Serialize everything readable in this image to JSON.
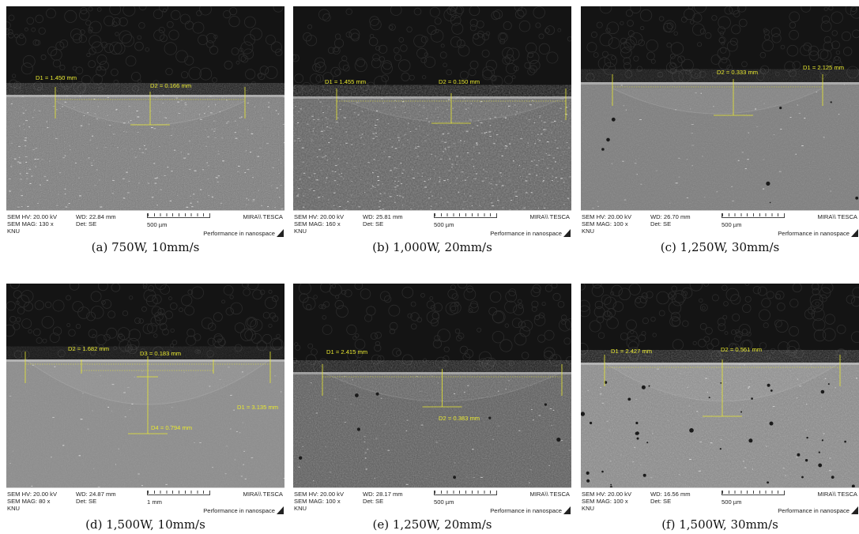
{
  "panels": [
    {
      "caption": "(a) 750W, 10mm/s",
      "hv": "SEM HV: 20.00 kV",
      "mag": "SEM MAG: 130 x",
      "wd": "WD: 22.84 mm",
      "det": "Det: SE",
      "scale": "500 µm",
      "lab": "KNU",
      "brand": "MIRA\\\\ TESCA",
      "perf": "Performance in nanospace",
      "ann": [
        {
          "t": "D1 = 1.450 mm"
        },
        {
          "t": "D2 = 0.166 mm"
        }
      ]
    },
    {
      "caption": "(b) 1,000W, 20mm/s",
      "hv": "SEM HV: 20.00 kV",
      "mag": "SEM MAG: 160 x",
      "wd": "WD: 25.81 mm",
      "det": "Det: SE",
      "scale": "500 µm",
      "lab": "KNU",
      "brand": "MIRA\\\\ TESCA",
      "perf": "Performance in nanospace",
      "ann": [
        {
          "t": "D1 = 1.455 mm"
        },
        {
          "t": "D2 = 0.150 mm"
        }
      ]
    },
    {
      "caption": "(c) 1,250W, 30mm/s",
      "hv": "SEM HV: 20.00 kV",
      "mag": "SEM MAG: 100 x",
      "wd": "WD: 26.70 mm",
      "det": "Det: SE",
      "scale": "500 µm",
      "lab": "KNU",
      "brand": "MIRA\\\\ TESCA",
      "perf": "Performance in nanospace",
      "ann": [
        {
          "t": "D2 = 0.333 mm"
        },
        {
          "t": "D1 = 2.125 mm"
        }
      ]
    },
    {
      "caption": "(d) 1,500W, 10mm/s",
      "hv": "SEM HV: 20.00 kV",
      "mag": "SEM MAG: 80 x",
      "wd": "WD: 24.87 mm",
      "det": "Det: SE",
      "scale": "1 mm",
      "lab": "KNU",
      "brand": "MIRA\\\\ TESCA",
      "perf": "Performance in nanospace",
      "ann": [
        {
          "t": "D2 = 1.682 mm"
        },
        {
          "t": "D3 = 0.183 mm"
        },
        {
          "t": "D1 = 3.135 mm"
        },
        {
          "t": "D4 = 0.794 mm"
        }
      ]
    },
    {
      "caption": "(e) 1,250W, 20mm/s",
      "hv": "SEM HV: 20.00 kV",
      "mag": "SEM MAG: 100 x",
      "wd": "WD: 28.17 mm",
      "det": "Det: SE",
      "scale": "500 µm",
      "lab": "KNU",
      "brand": "MIRA\\\\ TESCA",
      "perf": "Performance in nanospace",
      "ann": [
        {
          "t": "D1 = 2.415 mm"
        },
        {
          "t": "D2 = 0.383 mm"
        }
      ]
    },
    {
      "caption": "(f) 1,500W, 30mm/s",
      "hv": "SEM HV: 20.00 kV",
      "mag": "SEM MAG: 100 x",
      "wd": "WD: 16.56 mm",
      "det": "Det: SE",
      "scale": "500 µm",
      "lab": "KNU",
      "brand": "MIRA\\\\ TESCA",
      "perf": "Performance in nanospace",
      "ann": [
        {
          "t": "D1 = 2.427 mm"
        },
        {
          "t": "D2 = 0.561 mm"
        }
      ]
    }
  ]
}
